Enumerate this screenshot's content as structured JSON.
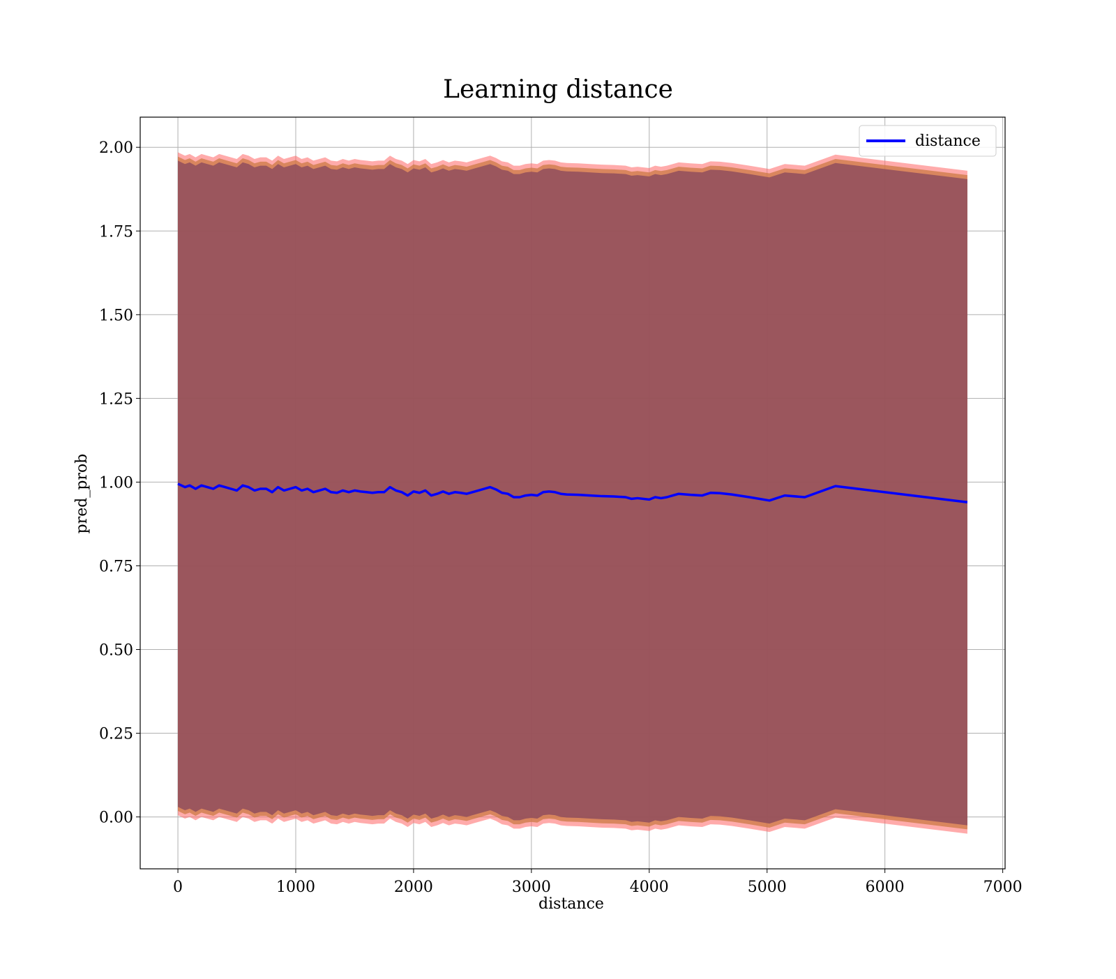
{
  "chart_data": {
    "type": "line",
    "title": "Learning distance",
    "xlabel": "distance",
    "ylabel": "pred_prob",
    "xlim": [
      -320,
      7020
    ],
    "ylim": [
      -0.155,
      2.09
    ],
    "xticks": [
      0,
      1000,
      2000,
      3000,
      4000,
      5000,
      6000,
      7000
    ],
    "xtick_labels": [
      "0",
      "1000",
      "2000",
      "3000",
      "4000",
      "5000",
      "6000",
      "7000"
    ],
    "yticks": [
      0.0,
      0.25,
      0.5,
      0.75,
      1.0,
      1.25,
      1.5,
      1.75,
      2.0
    ],
    "ytick_labels": [
      "0.00",
      "0.25",
      "0.50",
      "0.75",
      "1.00",
      "1.25",
      "1.50",
      "1.75",
      "2.00"
    ],
    "grid": true,
    "legend": {
      "position": "top-right",
      "entries": [
        "distance"
      ]
    },
    "colors": {
      "line": "#0000ff",
      "band_outer": "#ff6666",
      "band_mid": "#cc7a44",
      "band_inner": "#8b4a5c",
      "grid": "#b0b0b0"
    },
    "series": [
      {
        "name": "distance",
        "x": [
          0,
          30,
          60,
          100,
          150,
          200,
          250,
          300,
          350,
          400,
          450,
          500,
          550,
          600,
          650,
          700,
          750,
          800,
          850,
          900,
          950,
          1000,
          1050,
          1100,
          1150,
          1200,
          1250,
          1300,
          1350,
          1400,
          1450,
          1500,
          1550,
          1600,
          1650,
          1700,
          1750,
          1800,
          1850,
          1900,
          1950,
          2000,
          2050,
          2100,
          2150,
          2200,
          2250,
          2300,
          2350,
          2400,
          2450,
          2500,
          2550,
          2600,
          2650,
          2700,
          2750,
          2800,
          2850,
          2900,
          2950,
          3000,
          3050,
          3100,
          3150,
          3200,
          3250,
          3300,
          3400,
          3500,
          3600,
          3700,
          3800,
          3850,
          3900,
          4000,
          4050,
          4100,
          4150,
          4200,
          4250,
          4350,
          4450,
          4520,
          4600,
          4700,
          4850,
          5020,
          5150,
          5320,
          5580,
          6700
        ],
        "y": [
          0.995,
          0.99,
          0.985,
          0.99,
          0.98,
          0.99,
          0.985,
          0.98,
          0.99,
          0.985,
          0.98,
          0.975,
          0.99,
          0.985,
          0.975,
          0.98,
          0.98,
          0.97,
          0.985,
          0.975,
          0.98,
          0.985,
          0.975,
          0.98,
          0.97,
          0.975,
          0.98,
          0.97,
          0.968,
          0.975,
          0.97,
          0.975,
          0.972,
          0.97,
          0.968,
          0.97,
          0.97,
          0.985,
          0.975,
          0.97,
          0.96,
          0.972,
          0.968,
          0.975,
          0.96,
          0.965,
          0.972,
          0.965,
          0.97,
          0.968,
          0.965,
          0.97,
          0.975,
          0.98,
          0.985,
          0.978,
          0.968,
          0.965,
          0.955,
          0.955,
          0.96,
          0.962,
          0.96,
          0.97,
          0.972,
          0.97,
          0.965,
          0.963,
          0.962,
          0.96,
          0.958,
          0.957,
          0.955,
          0.95,
          0.952,
          0.948,
          0.955,
          0.952,
          0.955,
          0.96,
          0.965,
          0.962,
          0.96,
          0.968,
          0.967,
          0.963,
          0.955,
          0.945,
          0.96,
          0.955,
          0.988,
          0.94
        ]
      }
    ],
    "band": {
      "center_series": "distance",
      "half_width": 0.965
    }
  }
}
